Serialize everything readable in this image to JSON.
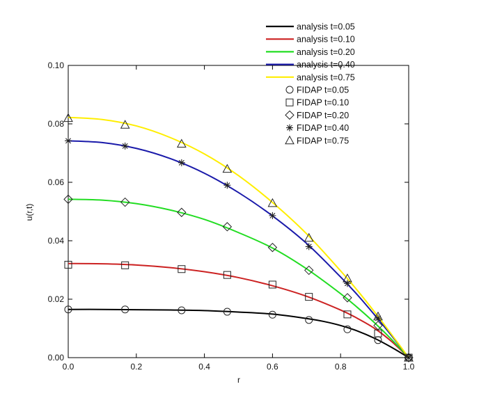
{
  "chart_data": {
    "type": "line",
    "title": "",
    "xlabel": "r",
    "ylabel": "u(r,t)",
    "xlim": [
      0,
      1
    ],
    "ylim": [
      0,
      0.1
    ],
    "xticks": [
      "0.0",
      "0.2",
      "0.4",
      "0.6",
      "0.8",
      "1.0"
    ],
    "yticks": [
      "0.00",
      "0.02",
      "0.04",
      "0.06",
      "0.08",
      "0.10"
    ],
    "grid": false,
    "legend_position": "top-right, partly above the plot frame",
    "series": [
      {
        "name": "analysis t=0.05",
        "kind": "line",
        "color": "#000000",
        "x": [
          0,
          0.1,
          0.2,
          0.3,
          0.4,
          0.5,
          0.6,
          0.7,
          0.75,
          0.8,
          0.85,
          0.9,
          0.95,
          1.0
        ],
        "y": [
          0.0165,
          0.0165,
          0.0164,
          0.0163,
          0.0161,
          0.0156,
          0.0149,
          0.0134,
          0.0124,
          0.011,
          0.0091,
          0.0066,
          0.0035,
          0.0
        ]
      },
      {
        "name": "analysis t=0.10",
        "kind": "line",
        "color": "#cc2222",
        "x": [
          0,
          0.1,
          0.2,
          0.3,
          0.4,
          0.5,
          0.6,
          0.7,
          0.8,
          0.85,
          0.9,
          0.95,
          1.0
        ],
        "y": [
          0.0322,
          0.0321,
          0.0317,
          0.0308,
          0.0294,
          0.0274,
          0.0246,
          0.021,
          0.0163,
          0.0134,
          0.01,
          0.0055,
          0.0
        ]
      },
      {
        "name": "analysis t=0.20",
        "kind": "line",
        "color": "#22dd22",
        "x": [
          0,
          0.1,
          0.2,
          0.3,
          0.4,
          0.5,
          0.6,
          0.7,
          0.8,
          0.85,
          0.9,
          0.95,
          1.0
        ],
        "y": [
          0.0542,
          0.0539,
          0.0527,
          0.0505,
          0.0473,
          0.0428,
          0.0375,
          0.0304,
          0.0219,
          0.0171,
          0.0119,
          0.0062,
          0.0
        ]
      },
      {
        "name": "analysis t=0.40",
        "kind": "line",
        "color": "#1a1aaa",
        "x": [
          0,
          0.1,
          0.2,
          0.3,
          0.4,
          0.5,
          0.6,
          0.7,
          0.8,
          0.85,
          0.9,
          0.95,
          1.0
        ],
        "y": [
          0.0742,
          0.0736,
          0.0716,
          0.0681,
          0.0631,
          0.0565,
          0.0485,
          0.0391,
          0.0276,
          0.0214,
          0.0146,
          0.0075,
          0.0
        ]
      },
      {
        "name": "analysis t=0.75",
        "kind": "line",
        "color": "#ffee00",
        "x": [
          0,
          0.1,
          0.2,
          0.3,
          0.4,
          0.5,
          0.6,
          0.7,
          0.8,
          0.85,
          0.9,
          0.95,
          1.0
        ],
        "y": [
          0.0822,
          0.0815,
          0.0793,
          0.0753,
          0.0697,
          0.0623,
          0.0531,
          0.0424,
          0.0297,
          0.0229,
          0.0156,
          0.0079,
          0.0
        ]
      },
      {
        "name": "FIDAP t=0.05",
        "kind": "markers",
        "marker": "circle",
        "x": [
          0.0,
          0.167,
          0.333,
          0.467,
          0.6,
          0.707,
          0.82,
          0.91,
          1.0
        ],
        "y": [
          0.0165,
          0.0165,
          0.0162,
          0.0157,
          0.0147,
          0.0129,
          0.0097,
          0.006,
          0.0
        ]
      },
      {
        "name": "FIDAP t=0.10",
        "kind": "markers",
        "marker": "square",
        "x": [
          0.0,
          0.167,
          0.333,
          0.467,
          0.6,
          0.707,
          0.82,
          0.91,
          1.0
        ],
        "y": [
          0.0318,
          0.0316,
          0.0303,
          0.0283,
          0.025,
          0.0208,
          0.0148,
          0.0083,
          0.0
        ]
      },
      {
        "name": "FIDAP t=0.20",
        "kind": "markers",
        "marker": "diamond",
        "x": [
          0.0,
          0.167,
          0.333,
          0.467,
          0.6,
          0.707,
          0.82,
          0.91,
          1.0
        ],
        "y": [
          0.0542,
          0.0532,
          0.0497,
          0.0448,
          0.0377,
          0.0299,
          0.0205,
          0.011,
          0.0
        ]
      },
      {
        "name": "FIDAP t=0.40",
        "kind": "markers",
        "marker": "asterisk",
        "x": [
          0.0,
          0.167,
          0.333,
          0.467,
          0.6,
          0.707,
          0.82,
          0.91,
          1.0
        ],
        "y": [
          0.0742,
          0.0724,
          0.0667,
          0.059,
          0.0486,
          0.038,
          0.0254,
          0.0135,
          0.0
        ]
      },
      {
        "name": "FIDAP t=0.75",
        "kind": "markers",
        "marker": "triangle",
        "x": [
          0.0,
          0.167,
          0.333,
          0.467,
          0.6,
          0.707,
          0.82,
          0.91,
          1.0
        ],
        "y": [
          0.082,
          0.0797,
          0.0732,
          0.0646,
          0.0529,
          0.041,
          0.0271,
          0.0141,
          0.0
        ]
      }
    ]
  }
}
